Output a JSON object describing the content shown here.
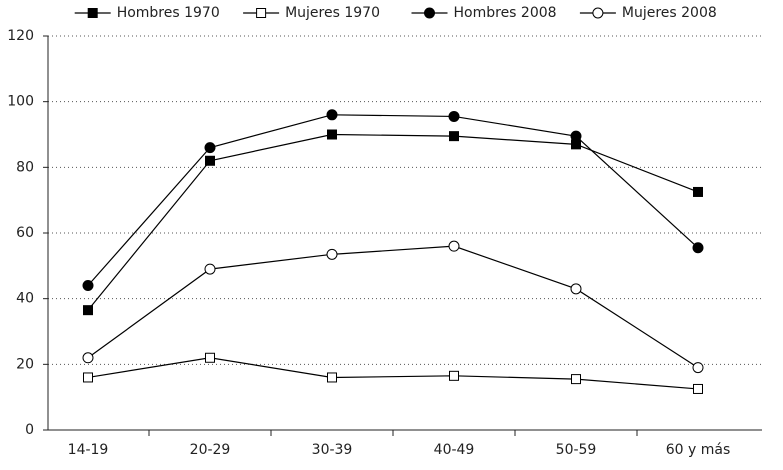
{
  "chart_data": {
    "type": "line",
    "categories": [
      "14-19",
      "20-29",
      "30-39",
      "40-49",
      "50-59",
      "60 y más"
    ],
    "series": [
      {
        "name": "Hombres 1970",
        "color": "#000000",
        "marker": "square",
        "marker_fill": "#000000",
        "values": [
          36.5,
          82,
          90,
          89.5,
          87,
          72.5
        ]
      },
      {
        "name": "Mujeres 1970",
        "color": "#000000",
        "marker": "square",
        "marker_fill": "#ffffff",
        "values": [
          16,
          22,
          16,
          16.5,
          15.5,
          12.5
        ]
      },
      {
        "name": "Hombres 2008",
        "color": "#000000",
        "marker": "circle",
        "marker_fill": "#000000",
        "values": [
          44,
          86,
          96,
          95.5,
          89.5,
          55.5
        ]
      },
      {
        "name": "Mujeres 2008",
        "color": "#000000",
        "marker": "circle",
        "marker_fill": "#ffffff",
        "values": [
          22,
          49,
          53.5,
          56,
          43,
          19
        ]
      }
    ],
    "ylim": [
      0,
      120
    ],
    "yticks": [
      0,
      20,
      40,
      60,
      80,
      100,
      120
    ],
    "grid": true,
    "legend": "top"
  }
}
